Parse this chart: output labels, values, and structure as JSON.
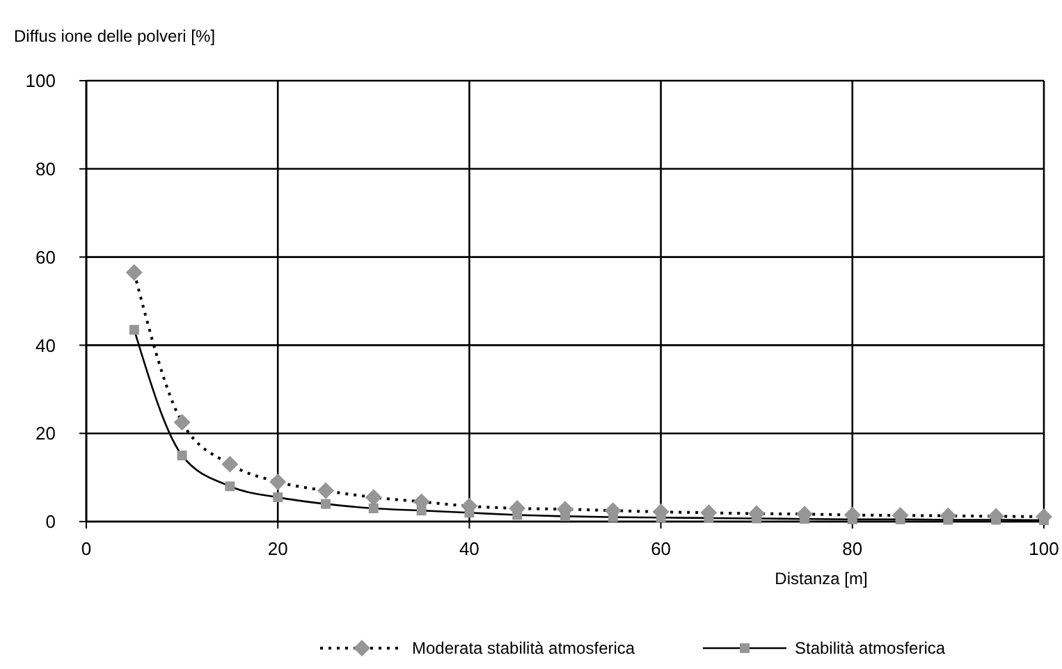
{
  "chart_data": {
    "type": "line",
    "ylabel": "Diffus ione delle polveri [%]",
    "xlabel": "Distanza [m]",
    "x": [
      5,
      10,
      15,
      20,
      25,
      30,
      35,
      40,
      45,
      50,
      55,
      60,
      65,
      70,
      75,
      80,
      85,
      90,
      95,
      100
    ],
    "xlim": [
      0,
      100
    ],
    "xticks": [
      0,
      20,
      40,
      60,
      80,
      100
    ],
    "ylim": [
      0,
      100
    ],
    "yticks": [
      0,
      20,
      40,
      60,
      80,
      100
    ],
    "grid": true,
    "legend": "bottom",
    "series": [
      {
        "name": "Moderata stabilità atmosferica",
        "color": "#969696",
        "marker": "diamond",
        "line_style": "dotted",
        "values": [
          56.5,
          22.5,
          13,
          9,
          7,
          5.5,
          4.5,
          3.5,
          3,
          2.8,
          2.5,
          2.2,
          2,
          1.8,
          1.7,
          1.5,
          1.4,
          1.3,
          1.2,
          1.1
        ]
      },
      {
        "name": "Stabilità atmosferica",
        "color": "#969696",
        "marker": "square",
        "line_style": "solid",
        "values": [
          43.5,
          15,
          8,
          5.5,
          4,
          3,
          2.5,
          2,
          1.5,
          1.2,
          1,
          0.9,
          0.8,
          0.7,
          0.6,
          0.5,
          0.5,
          0.4,
          0.4,
          0.3
        ]
      }
    ]
  }
}
